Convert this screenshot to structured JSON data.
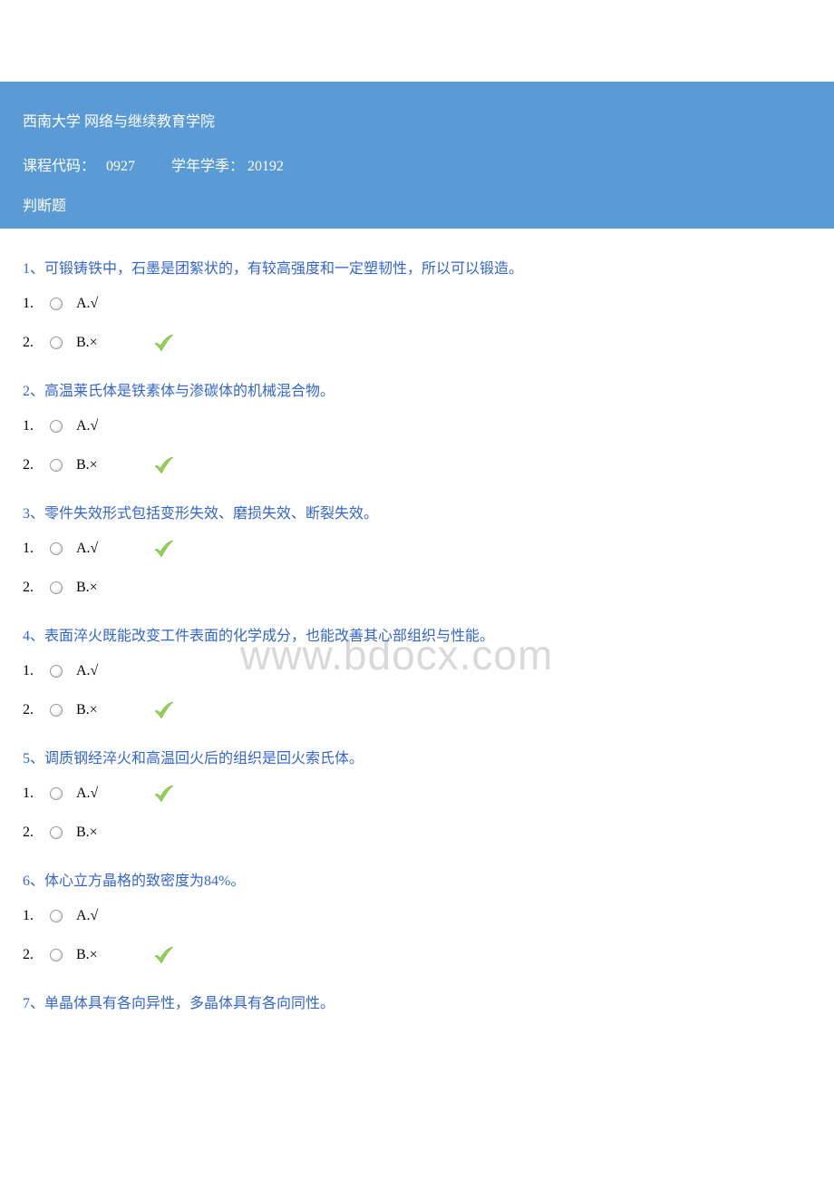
{
  "header": {
    "institution": "西南大学 网络与继续教育学院",
    "course_code_label": "课程代码：",
    "course_code": "0927",
    "semester_label": "学年学季：",
    "semester": "20192",
    "section_title": "判断题"
  },
  "watermark": "www.bdocx.com",
  "option_labels": {
    "true": "A.√",
    "false": "B.×"
  },
  "questions": [
    {
      "number": "1、",
      "text": "可锻铸铁中，石墨是团絮状的，有较高强度和一定塑韧性，所以可以锻造。",
      "correct": "B"
    },
    {
      "number": "2、",
      "text": "高温莱氏体是铁素体与渗碳体的机械混合物。",
      "correct": "B"
    },
    {
      "number": "3、",
      "text": "零件失效形式包括变形失效、磨损失效、断裂失效。",
      "correct": "A"
    },
    {
      "number": "4、",
      "text": "表面淬火既能改变工件表面的化学成分，也能改善其心部组织与性能。",
      "correct": "B"
    },
    {
      "number": "5、",
      "text": "调质钢经淬火和高温回火后的组织是回火索氏体。",
      "correct": "A"
    },
    {
      "number": "6、",
      "text": "体心立方晶格的致密度为84%。",
      "correct": "B"
    },
    {
      "number": "7、",
      "text": "单晶体具有各向异性，多晶体具有各向同性。",
      "correct": null
    }
  ],
  "colors": {
    "header_bg": "#5b9bd5",
    "header_text": "#ffffff",
    "question_text": "#3366cc",
    "body_text": "#000000",
    "checkmark_fill": "#92d050",
    "checkmark_stroke": "#70ad47",
    "watermark": "#d9d9d9"
  }
}
